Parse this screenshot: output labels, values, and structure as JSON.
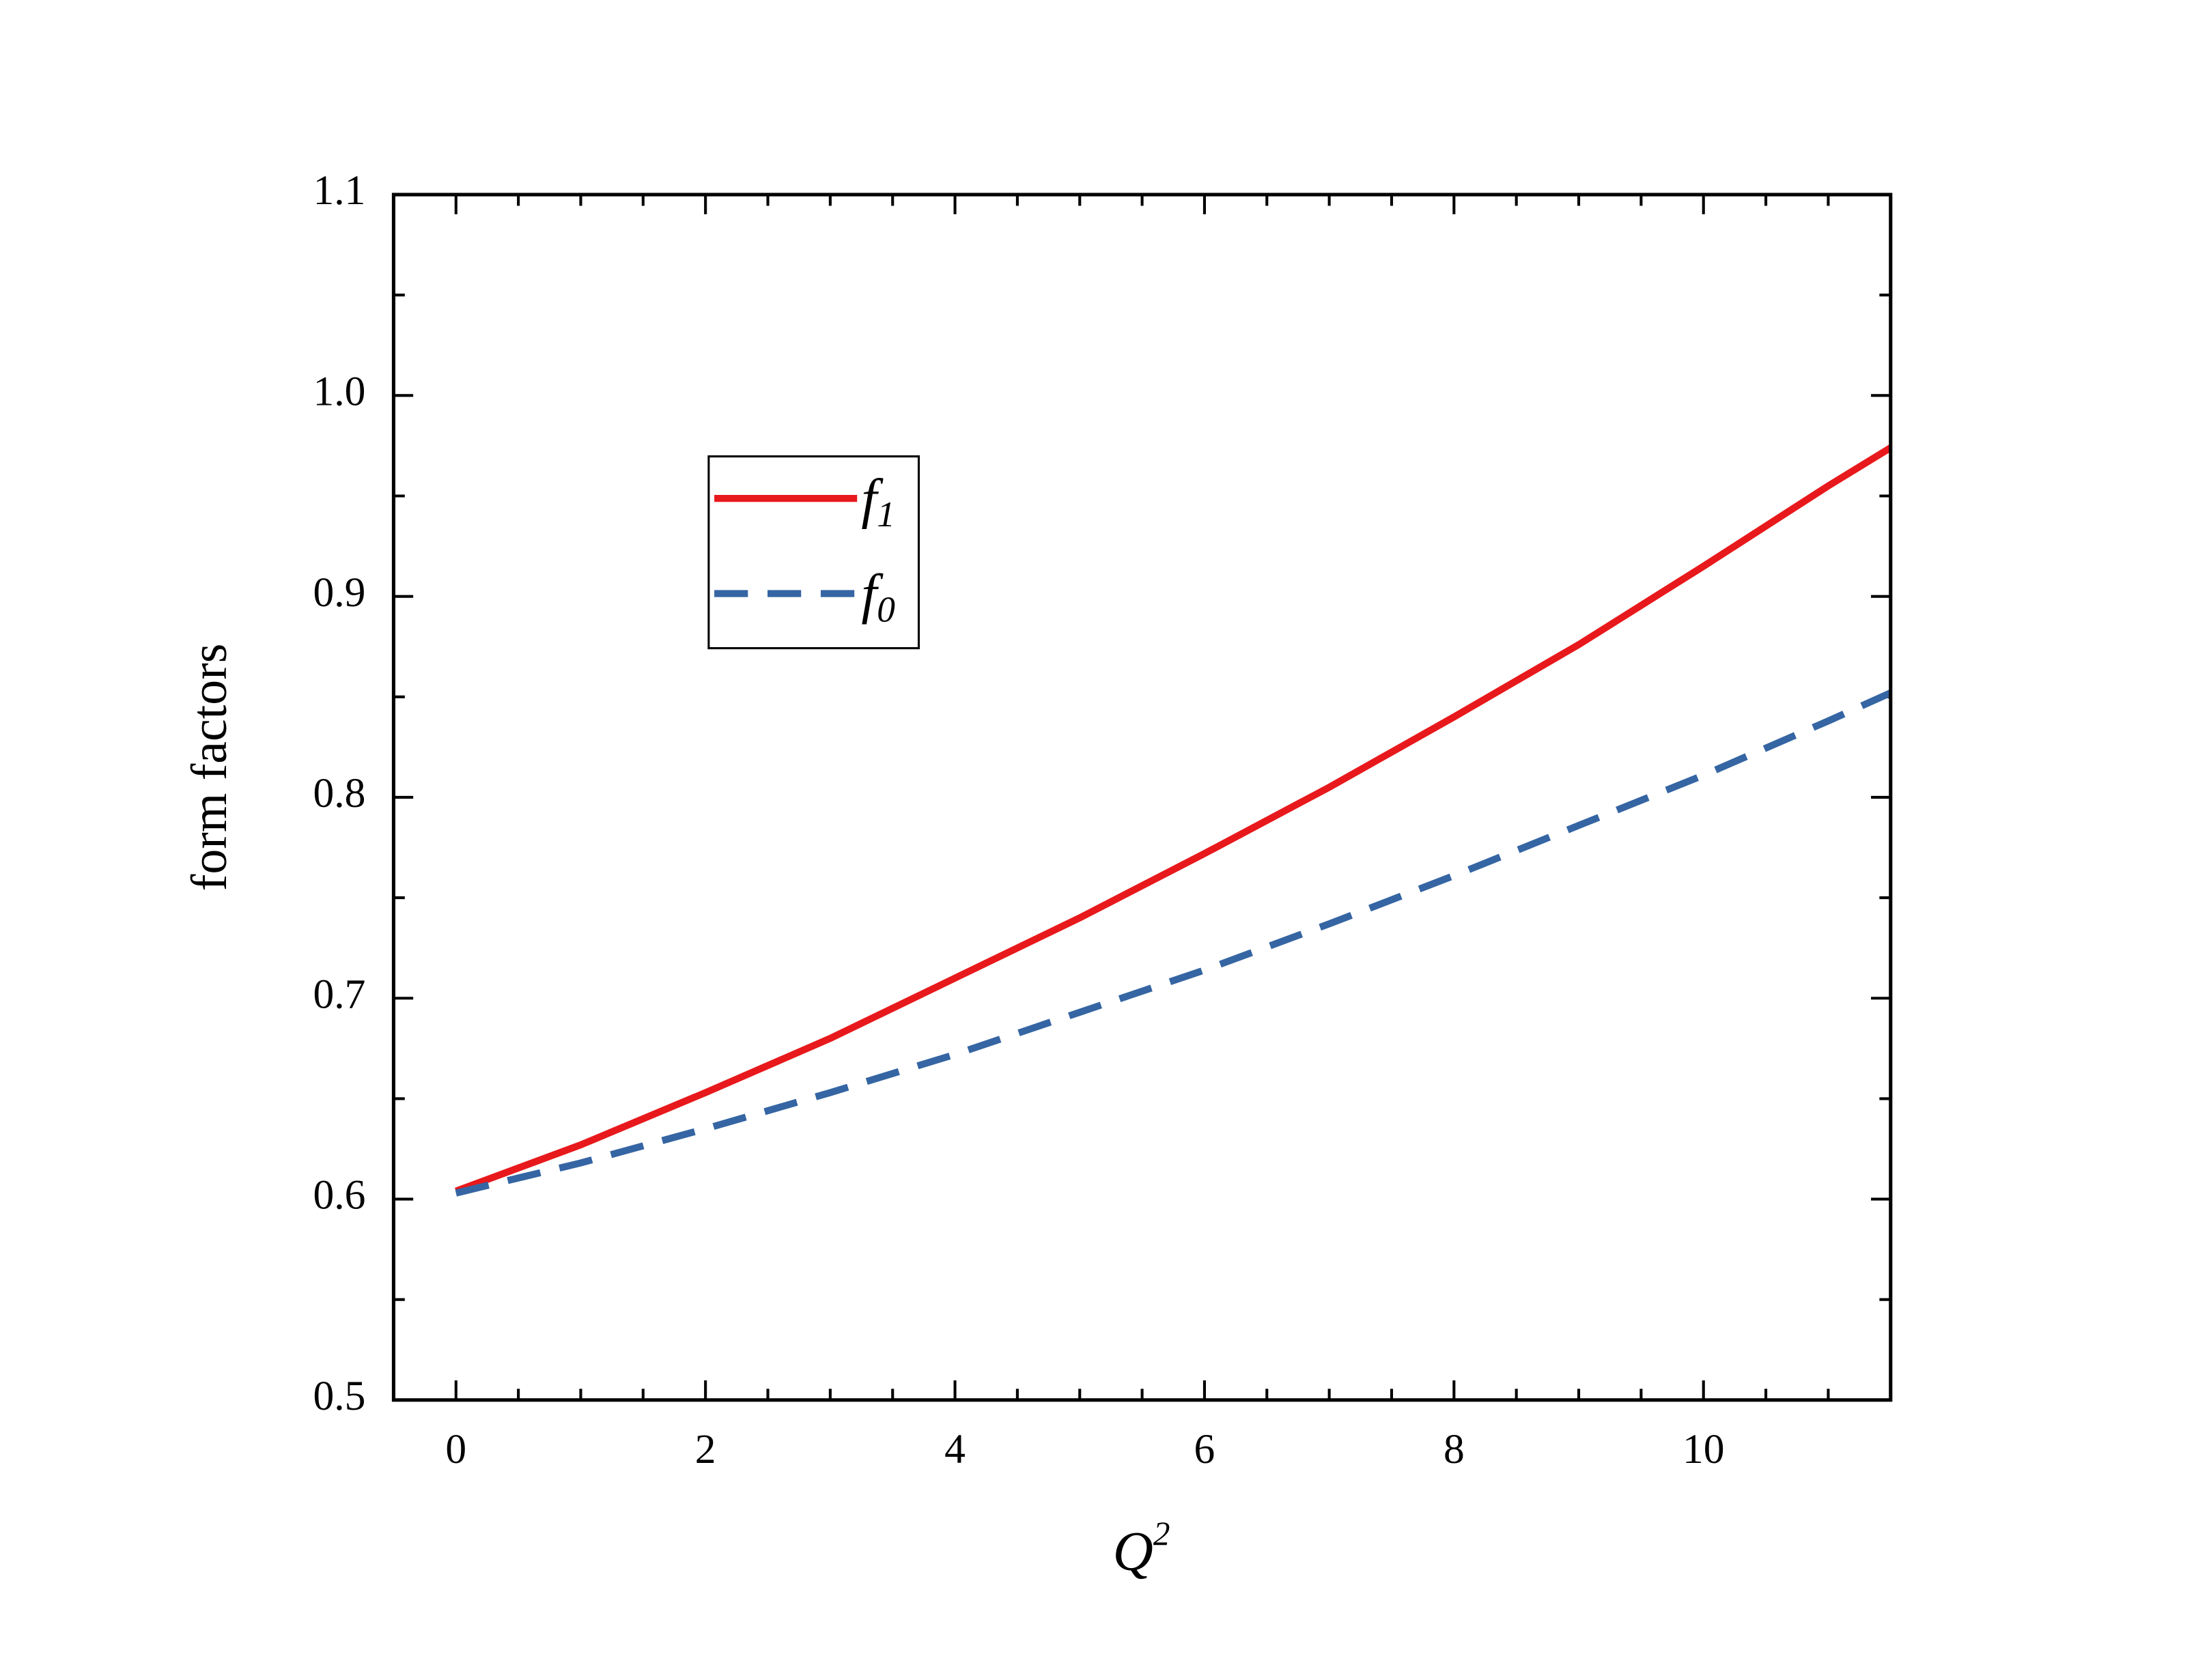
{
  "chart_data": {
    "type": "line",
    "xlabel": "Q2",
    "ylabel": "form factors",
    "x": [
      0,
      1,
      2,
      3,
      4,
      5,
      6,
      7,
      8,
      9,
      10,
      11,
      11.5
    ],
    "series": [
      {
        "name": "f1",
        "color": "#e8191c",
        "linestyle": "solid",
        "values": [
          0.604,
          0.627,
          0.653,
          0.68,
          0.71,
          0.74,
          0.772,
          0.805,
          0.84,
          0.876,
          0.915,
          0.955,
          0.974
        ]
      },
      {
        "name": "f0",
        "color": "#3565a3",
        "linestyle": "dashed",
        "values": [
          0.603,
          0.618,
          0.635,
          0.653,
          0.672,
          0.693,
          0.714,
          0.737,
          0.761,
          0.786,
          0.811,
          0.838,
          0.852
        ]
      }
    ],
    "xlim": [
      -0.5,
      11.5
    ],
    "xticks": [
      0,
      2,
      4,
      6,
      8,
      10
    ],
    "ylim": [
      0.5,
      1.1
    ],
    "yticks": [
      0.5,
      0.6,
      0.7,
      0.8,
      0.9,
      {
        "value": 1,
        "label": "1.0"
      },
      1.1
    ],
    "legend": "upper-left",
    "grid": false
  }
}
